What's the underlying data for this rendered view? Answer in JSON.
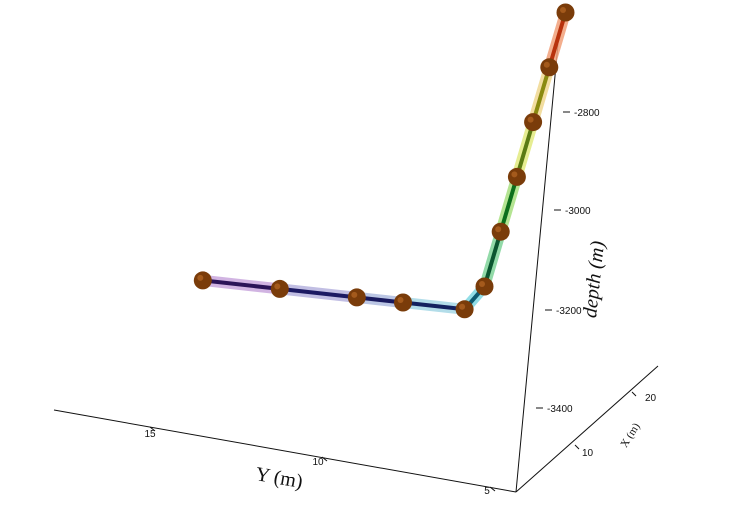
{
  "chart_data": {
    "type": "line3d",
    "axes": {
      "x": {
        "label": "X (m)",
        "ticks": [
          "10",
          "20"
        ]
      },
      "y": {
        "label": "Y (m)",
        "ticks": [
          "15",
          "10",
          "5"
        ]
      },
      "z": {
        "label": "depth (m)",
        "ticks": [
          "-2800",
          "-3000",
          "-3200",
          "-3400"
        ]
      }
    },
    "grid": false,
    "colors": {
      "marker": "#7a3c0a",
      "axis": "#111111",
      "segments": [
        "#2b1458",
        "#1c1a63",
        "#18195e",
        "#14225f",
        "#0d5a70",
        "#0b5630",
        "#0d6f1c",
        "#5a7a14",
        "#8a8a10",
        "#b8320d"
      ],
      "halos": [
        "#c9a8de",
        "#b7b3df",
        "#b0bde0",
        "#a6d8e6",
        "#7fd8e2",
        "#7fd49a",
        "#a8e080",
        "#e2ea80",
        "#f0d890",
        "#f2a07a"
      ]
    },
    "points": [
      {
        "x": 5,
        "y": 14.0,
        "z": -3200
      },
      {
        "x": 5,
        "y": 11.5,
        "z": -3200
      },
      {
        "x": 5,
        "y": 9.0,
        "z": -3200
      },
      {
        "x": 5,
        "y": 7.5,
        "z": -3200
      },
      {
        "x": 5,
        "y": 5.5,
        "z": -3200
      },
      {
        "x": 5,
        "y": 5.0,
        "z": -3150
      },
      {
        "x": 6,
        "y": 5.0,
        "z": -3050
      },
      {
        "x": 7,
        "y": 5.0,
        "z": -2950
      },
      {
        "x": 8,
        "y": 5.0,
        "z": -2850
      },
      {
        "x": 9,
        "y": 5.0,
        "z": -2750
      },
      {
        "x": 10,
        "y": 5.0,
        "z": -2650
      }
    ]
  }
}
